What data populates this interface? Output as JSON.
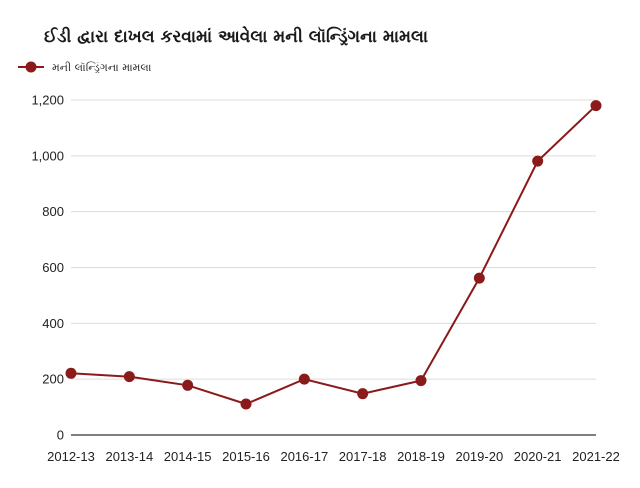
{
  "chart_data": {
    "type": "line",
    "title": "ઈડી દ્વારા દાખલ કરવામાં આવેલા મની લૉન્ડ્રિંગના મામલા",
    "xlabel": "",
    "ylabel": "",
    "categories": [
      "2012-13",
      "2013-14",
      "2014-15",
      "2015-16",
      "2016-17",
      "2017-18",
      "2018-19",
      "2019-20",
      "2020-21",
      "2021-22"
    ],
    "series": [
      {
        "name": "મની લૉન્ડ્રિંગના મામલા",
        "values": [
          221,
          209,
          178,
          111,
          200,
          148,
          195,
          562,
          981,
          1180
        ],
        "color": "#8b1a1a"
      }
    ],
    "yticks": [
      "0",
      "200",
      "400",
      "600",
      "800",
      "1,000",
      "1,200"
    ],
    "ylim": [
      0,
      1200
    ],
    "grid": true,
    "legend_position": "top-left"
  }
}
